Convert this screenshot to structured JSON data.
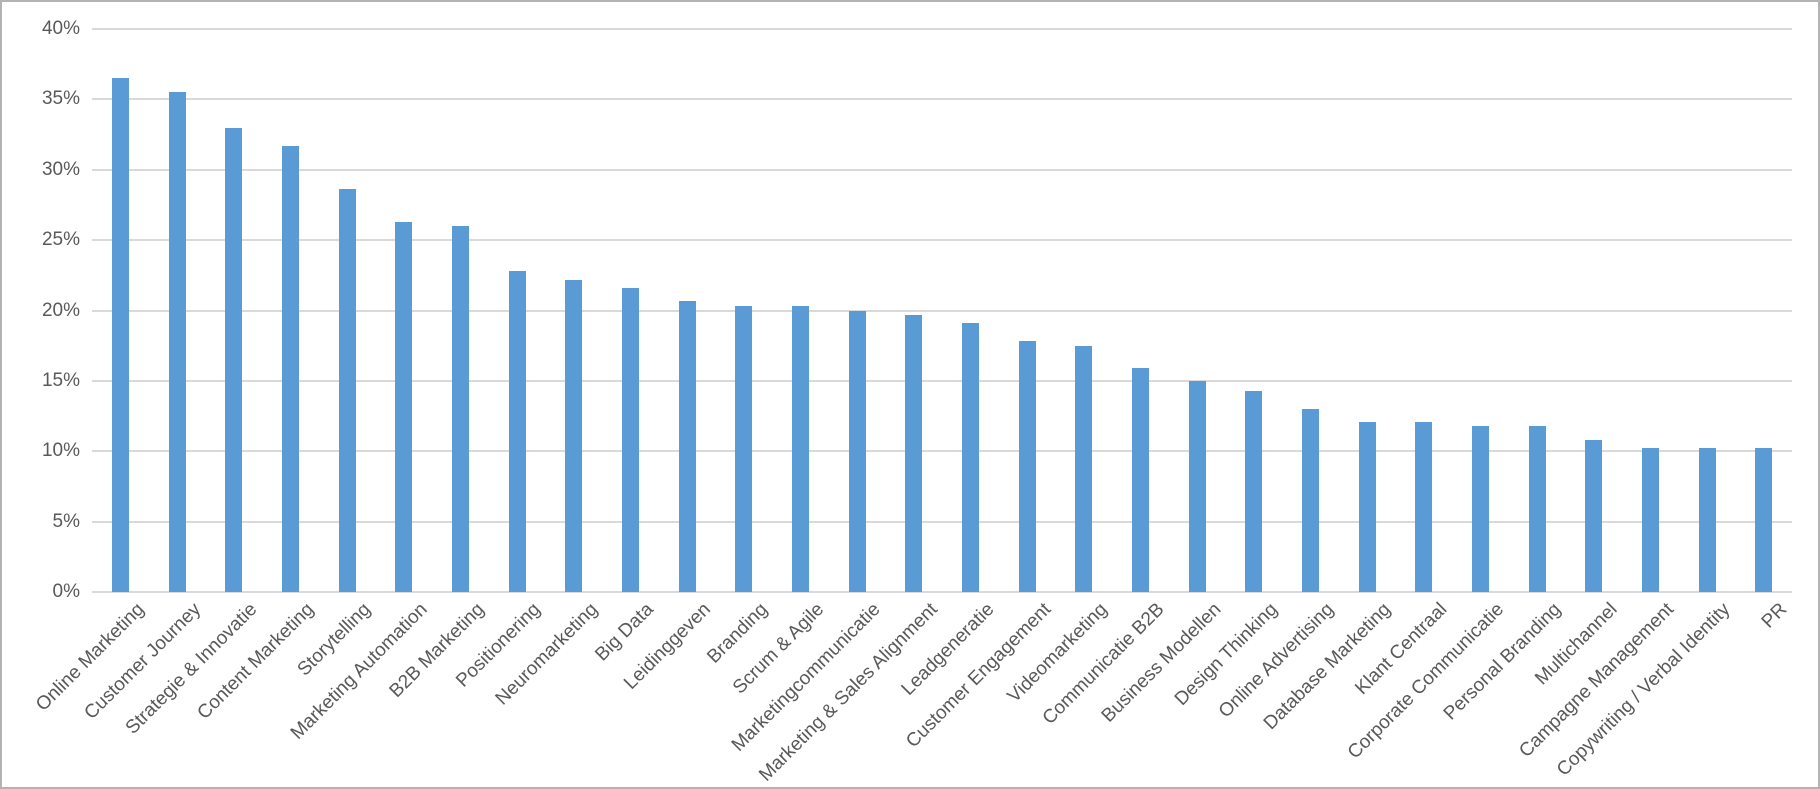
{
  "chart_data": {
    "type": "bar",
    "title": "",
    "xlabel": "",
    "ylabel": "",
    "categories": [
      "Online Marketing",
      "Customer Journey",
      "Strategie & Innovatie",
      "Content Marketing",
      "Storytelling",
      "Marketing Automation",
      "B2B Marketing",
      "Positionering",
      "Neuromarketing",
      "Big Data",
      "Leidinggeven",
      "Branding",
      "Scrum & Agile",
      "Marketingcommunicatie",
      "Marketing & Sales Alignment",
      "Leadgeneratie",
      "Customer Engagement",
      "Videomarketing",
      "Communicatie B2B",
      "Business Modellen",
      "Design Thinking",
      "Online Advertising",
      "Database Marketing",
      "Klant Centraal",
      "Corporate Communicatie",
      "Personal Branding",
      "Multichannel",
      "Campagne Management",
      "Copywriting / Verbal Identity",
      "PR"
    ],
    "values": [
      36.5,
      35.5,
      33.0,
      31.7,
      28.6,
      26.3,
      26.0,
      22.8,
      22.2,
      21.6,
      20.7,
      20.3,
      20.3,
      20.0,
      19.7,
      19.1,
      17.8,
      17.5,
      15.9,
      15.0,
      14.3,
      13.0,
      12.1,
      12.1,
      11.8,
      11.8,
      10.8,
      10.2,
      10.2,
      10.2
    ],
    "value_unit": "%",
    "ylim": [
      0,
      40
    ],
    "ytick_step": 5,
    "yticks": [
      "0%",
      "5%",
      "10%",
      "15%",
      "20%",
      "25%",
      "30%",
      "35%",
      "40%"
    ],
    "grid": true,
    "legend": false,
    "bar_color": "#5B9BD5",
    "gridline_color": "#D9D9D9",
    "tick_label_color": "#595959",
    "frame_border_color": "#B3B3B3",
    "background_color": "#FFFFFF"
  }
}
